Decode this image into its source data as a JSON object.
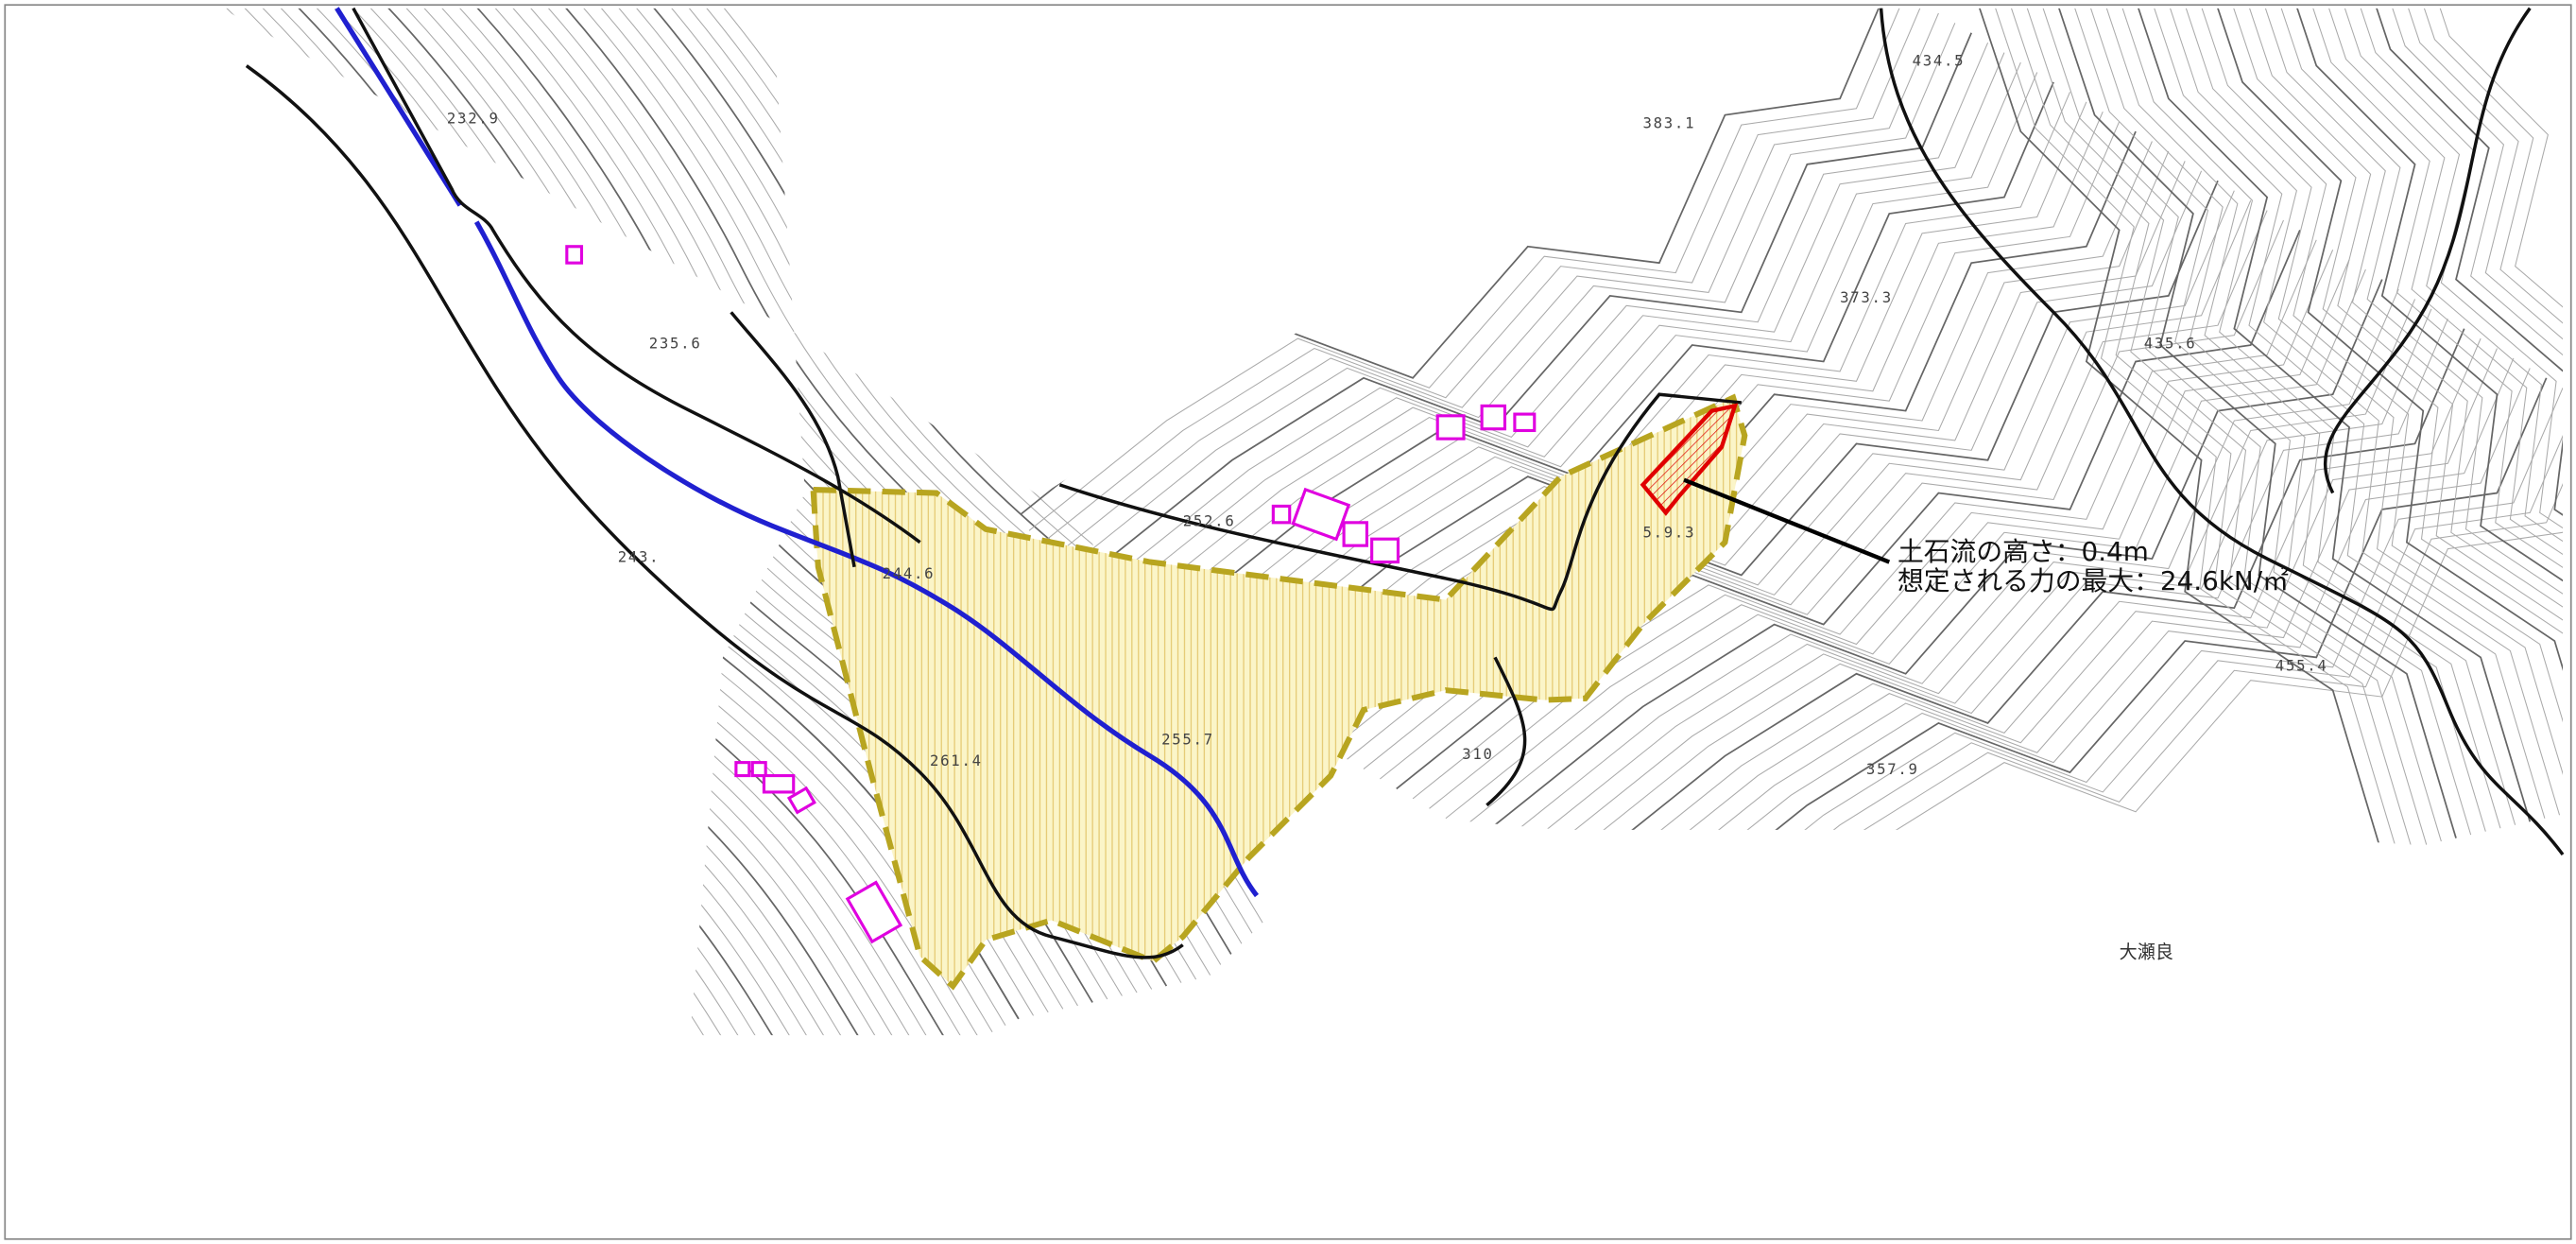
{
  "map": {
    "elevations": [
      "232.9",
      "235.6",
      "243.",
      "244.6",
      "252.6",
      "5.9.3",
      "255.7",
      "261.4",
      "310",
      "357.9",
      "373.3",
      "383.1",
      "435.6",
      "434.5",
      "455.4"
    ],
    "place_name": "大瀬良",
    "annotation": {
      "height": "土石流の高さ：0.4m",
      "max_force": "想定される力の最大：24.6kN/㎡"
    }
  }
}
